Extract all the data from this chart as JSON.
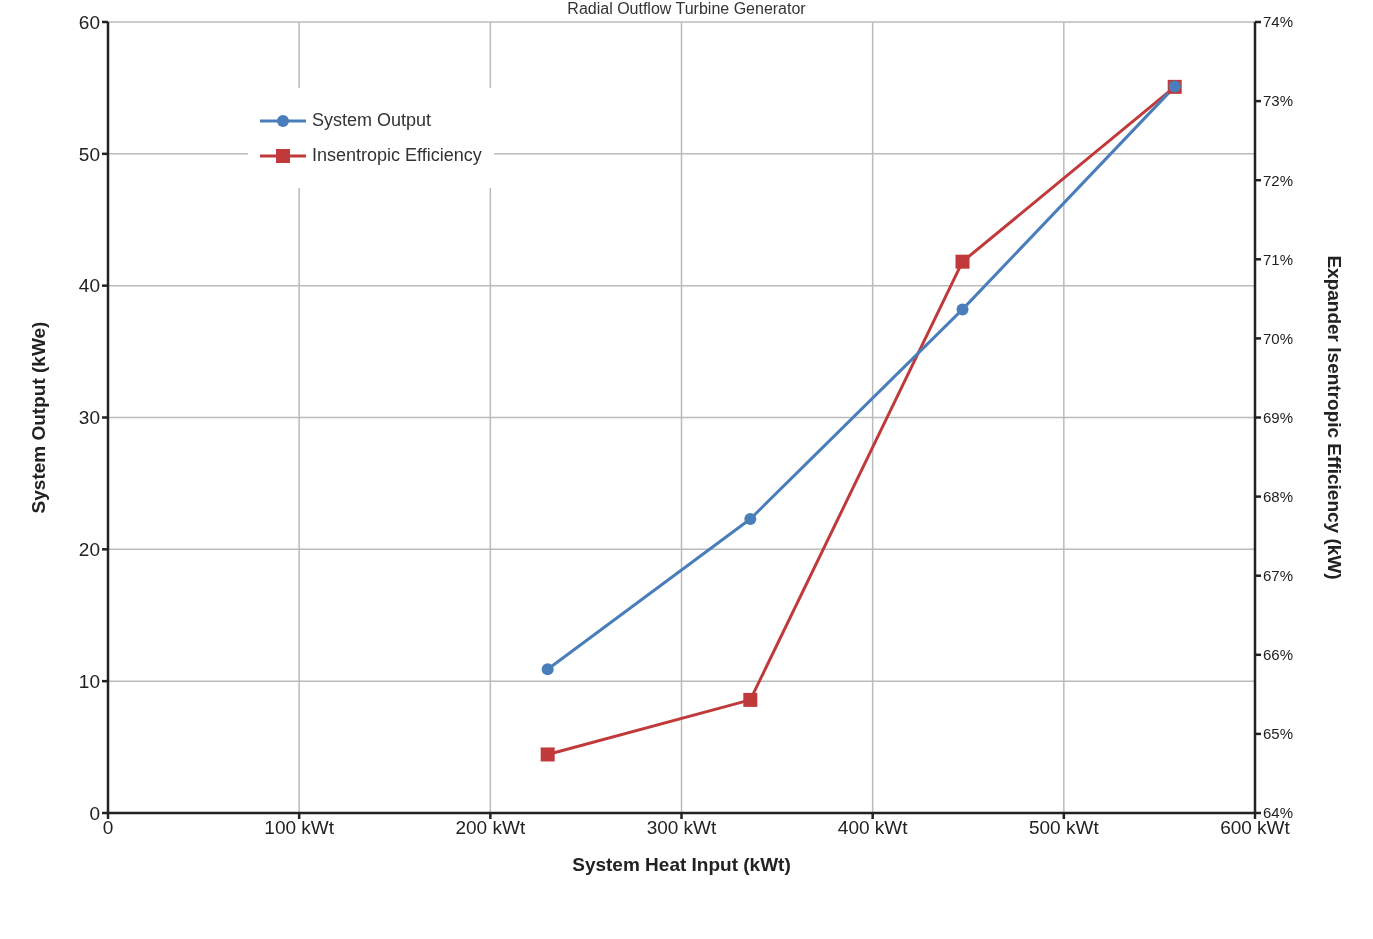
{
  "chart_data": {
    "type": "line",
    "title": "Radial Outflow Turbine Generator",
    "xlabel": "System Heat Input (kWt)",
    "ylabel": "System Output (kWe)",
    "y2label": "Expander Isentropic Efficiency (kW)",
    "xlim": [
      0,
      600
    ],
    "xticks": [
      0,
      {
        "value": 100,
        "label": "100 kWt"
      },
      {
        "value": 200,
        "label": "200 kWt"
      },
      {
        "value": 300,
        "label": "300 kWt"
      },
      {
        "value": 400,
        "label": "400 kWt"
      },
      {
        "value": 500,
        "label": "500 kWt"
      },
      {
        "value": 600,
        "label": "600 kWt"
      }
    ],
    "ylim": [
      0,
      60
    ],
    "yticks": [
      0,
      10,
      20,
      30,
      40,
      50,
      60
    ],
    "y2lim": [
      64,
      74
    ],
    "y2ticks": [
      {
        "value": 64,
        "label": "64%"
      },
      {
        "value": 65,
        "label": "65%"
      },
      {
        "value": 66,
        "label": "66%"
      },
      {
        "value": 67,
        "label": "67%"
      },
      {
        "value": 68,
        "label": "68%"
      },
      {
        "value": 69,
        "label": "69%"
      },
      {
        "value": 70,
        "label": "70%"
      },
      {
        "value": 71,
        "label": "71%"
      },
      {
        "value": 72,
        "label": "72%"
      },
      {
        "value": 73,
        "label": "73%"
      },
      {
        "value": 74,
        "label": "74%"
      }
    ],
    "grid": true,
    "legend": "top left",
    "line_style": "solid",
    "series": [
      {
        "name": "System Output",
        "color": "#4a7ebb",
        "marker": "circle",
        "x": [
          230,
          336,
          447,
          558
        ],
        "values": [
          10.9,
          22.3,
          38.2,
          55.1
        ]
      },
      {
        "name": "Insentropic Efficiency",
        "color": "#c0393b",
        "marker": "square",
        "axis": "y2",
        "x": [
          230,
          336,
          447,
          558
        ],
        "values": [
          64.74,
          65.43,
          70.97,
          73.18
        ]
      }
    ]
  }
}
